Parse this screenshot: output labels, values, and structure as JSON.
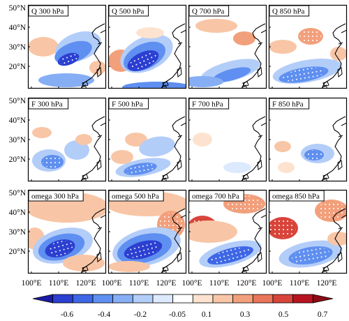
{
  "figure": {
    "latitude_labels": [
      "50°N",
      "40°N",
      "30°N",
      "20°N"
    ],
    "longitude_labels": [
      "100°E",
      "110°E",
      "120°E"
    ],
    "panel_titles": [
      [
        "Q 300 hPa",
        "Q 500 hPa",
        "Q 700 hPa",
        "Q 850 hPa"
      ],
      [
        "F 300 hPa",
        "F 500 hPa",
        "F 700 hPa",
        "F 850 hPa"
      ],
      [
        "omega 300 hPa",
        "omega 500 hPa",
        "omega 700 hPa",
        "omega 850 hPa"
      ]
    ]
  },
  "colorbar": {
    "tick_labels": [
      "-0.6",
      "-0.4",
      "-0.2",
      "-0.05",
      "0.1",
      "0.3",
      "0.5",
      "0.7"
    ],
    "colors": [
      "#1a1aa6",
      "#2b3fd1",
      "#3e67e6",
      "#5f8ff0",
      "#86aef5",
      "#b3cdf9",
      "#dde9fd",
      "#ffffff",
      "#fde3cf",
      "#f8c6a6",
      "#f2a07c",
      "#e9755a",
      "#d9443a",
      "#b8141f",
      "#8c0a15"
    ]
  },
  "chart_data": {
    "type": "heatmap",
    "region": {
      "lon_range": [
        95,
        128
      ],
      "lat_range": [
        15,
        50
      ]
    },
    "variables": [
      "Q",
      "F",
      "omega"
    ],
    "levels_hPa": [
      300,
      500,
      700,
      850
    ],
    "colorbar_range": [
      -0.7,
      0.7
    ]
  }
}
